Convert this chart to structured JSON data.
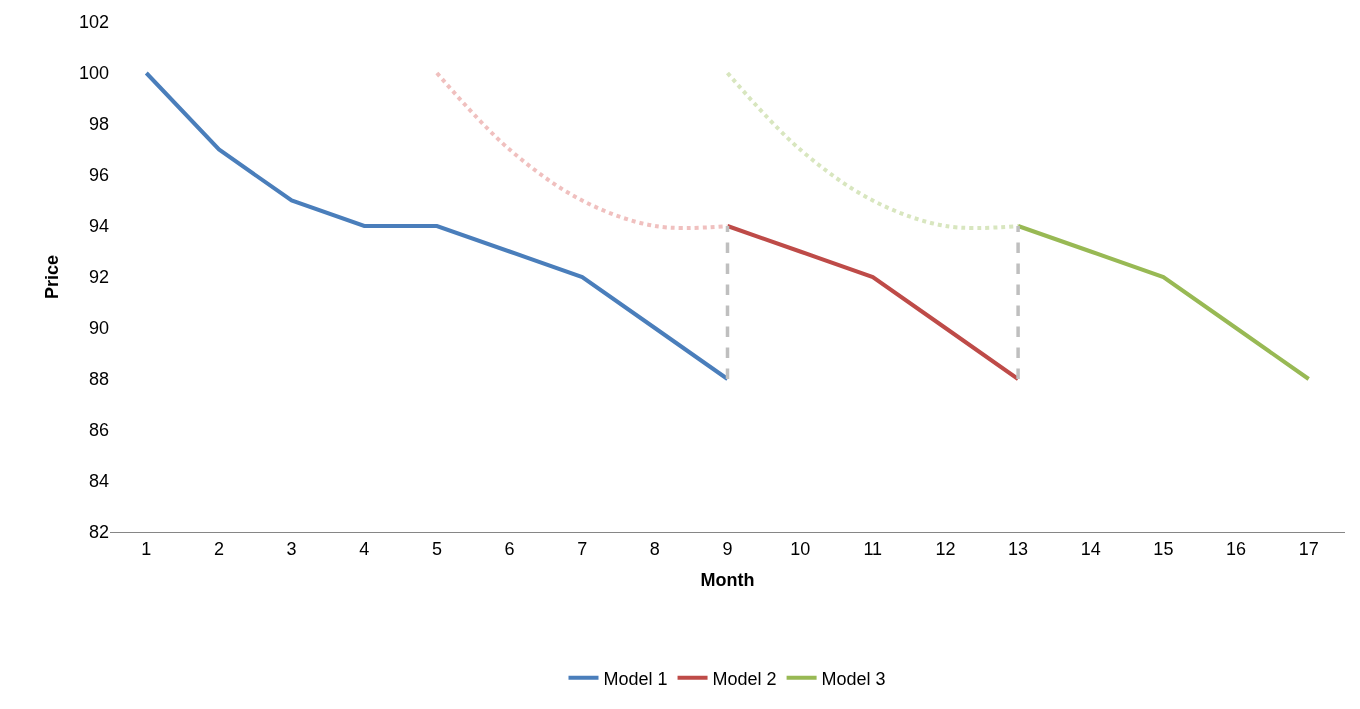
{
  "chart_data": {
    "type": "line",
    "xlabel": "Month",
    "ylabel": "Price",
    "xlim": [
      0.5,
      17.5
    ],
    "xticks": [
      1,
      2,
      3,
      4,
      5,
      6,
      7,
      8,
      9,
      10,
      11,
      12,
      13,
      14,
      15,
      16,
      17
    ],
    "ylim": [
      82,
      102
    ],
    "yticks": [
      82,
      84,
      86,
      88,
      90,
      92,
      94,
      96,
      98,
      100,
      102
    ],
    "legend": "bottom",
    "marker": "none",
    "series": [
      {
        "name": "Model 1",
        "color": "#4a7ebb",
        "x": [
          1,
          2,
          3,
          4,
          5,
          6,
          7,
          8,
          9
        ],
        "values": [
          100,
          97,
          95,
          94,
          94,
          93,
          92,
          90,
          88
        ],
        "line_style": "solid"
      },
      {
        "name": "Model 2",
        "color": "#be4b48",
        "x": [
          9,
          10,
          11,
          12,
          13
        ],
        "values": [
          94,
          93,
          92,
          90,
          88
        ],
        "line_style": "solid"
      },
      {
        "name": "Model 3",
        "color": "#98b954",
        "x": [
          13,
          14,
          15,
          16,
          17
        ],
        "values": [
          94,
          93,
          92,
          90,
          88
        ],
        "line_style": "solid"
      },
      {
        "color": "#f0c0bf",
        "x": [
          5,
          6,
          7,
          8,
          9
        ],
        "values": [
          100,
          97,
          95,
          94,
          94
        ],
        "line_style": "dotted"
      },
      {
        "color": "#d8e6bf",
        "x": [
          9,
          10,
          11,
          12,
          13
        ],
        "values": [
          100,
          97,
          95,
          94,
          94
        ],
        "line_style": "dotted"
      },
      {
        "color": "#bfbfbf",
        "x": [
          9,
          9
        ],
        "values": [
          88,
          94
        ],
        "line_style": "dashed"
      },
      {
        "color": "#bfbfbf",
        "x": [
          13,
          13
        ],
        "values": [
          88,
          94
        ],
        "line_style": "dashed"
      }
    ]
  }
}
